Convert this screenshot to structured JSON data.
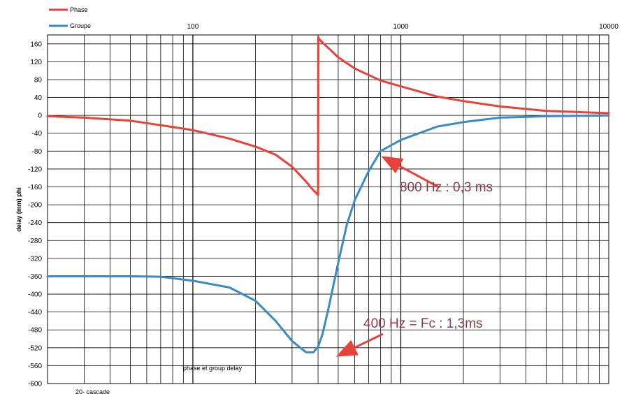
{
  "chart_data": {
    "type": "line",
    "title": "phase et group delay",
    "ylabel": "delay (mm) phi",
    "xlabel": "",
    "xscale": "log",
    "xlim": [
      20,
      10000
    ],
    "ylim": [
      -600,
      180
    ],
    "grid": true,
    "legend_position": "top-left",
    "x_tick_labels": [
      "100",
      "1000",
      "10000"
    ],
    "y_ticks": [
      160,
      120,
      80,
      40,
      0,
      -40,
      -80,
      -120,
      -160,
      -200,
      -240,
      -280,
      -320,
      -360,
      -400,
      -440,
      -480,
      -520,
      -560,
      -600
    ],
    "series": [
      {
        "name": "Phase",
        "color": "#e8413a",
        "x": [
          20,
          30,
          50,
          70,
          100,
          150,
          200,
          250,
          300,
          350,
          380,
          400,
          401,
          405,
          450,
          500,
          600,
          800,
          1000,
          1500,
          2000,
          3000,
          5000,
          10000
        ],
        "y": [
          -2,
          -5,
          -12,
          -22,
          -33,
          -52,
          -70,
          -88,
          -115,
          -148,
          -168,
          -178,
          175,
          170,
          150,
          130,
          105,
          78,
          65,
          42,
          32,
          20,
          10,
          5
        ]
      },
      {
        "name": "Groupe",
        "color": "#3a8ac5",
        "x": [
          20,
          50,
          70,
          100,
          150,
          200,
          250,
          300,
          350,
          380,
          400,
          420,
          450,
          500,
          550,
          600,
          700,
          800,
          1000,
          1500,
          2000,
          3000,
          5000,
          10000
        ],
        "y": [
          -360,
          -360,
          -361,
          -370,
          -385,
          -415,
          -460,
          -505,
          -530,
          -530,
          -518,
          -490,
          -430,
          -330,
          -245,
          -190,
          -125,
          -80,
          -55,
          -25,
          -15,
          -5,
          -2,
          0
        ]
      }
    ],
    "annotations": [
      {
        "text": "800 Hz : 0,3 ms",
        "x": 800,
        "y": -80
      },
      {
        "text": "400 Hz = Fc : 1,3ms",
        "x": 400,
        "y": -530
      }
    ]
  },
  "stray_text": "20- cascade"
}
